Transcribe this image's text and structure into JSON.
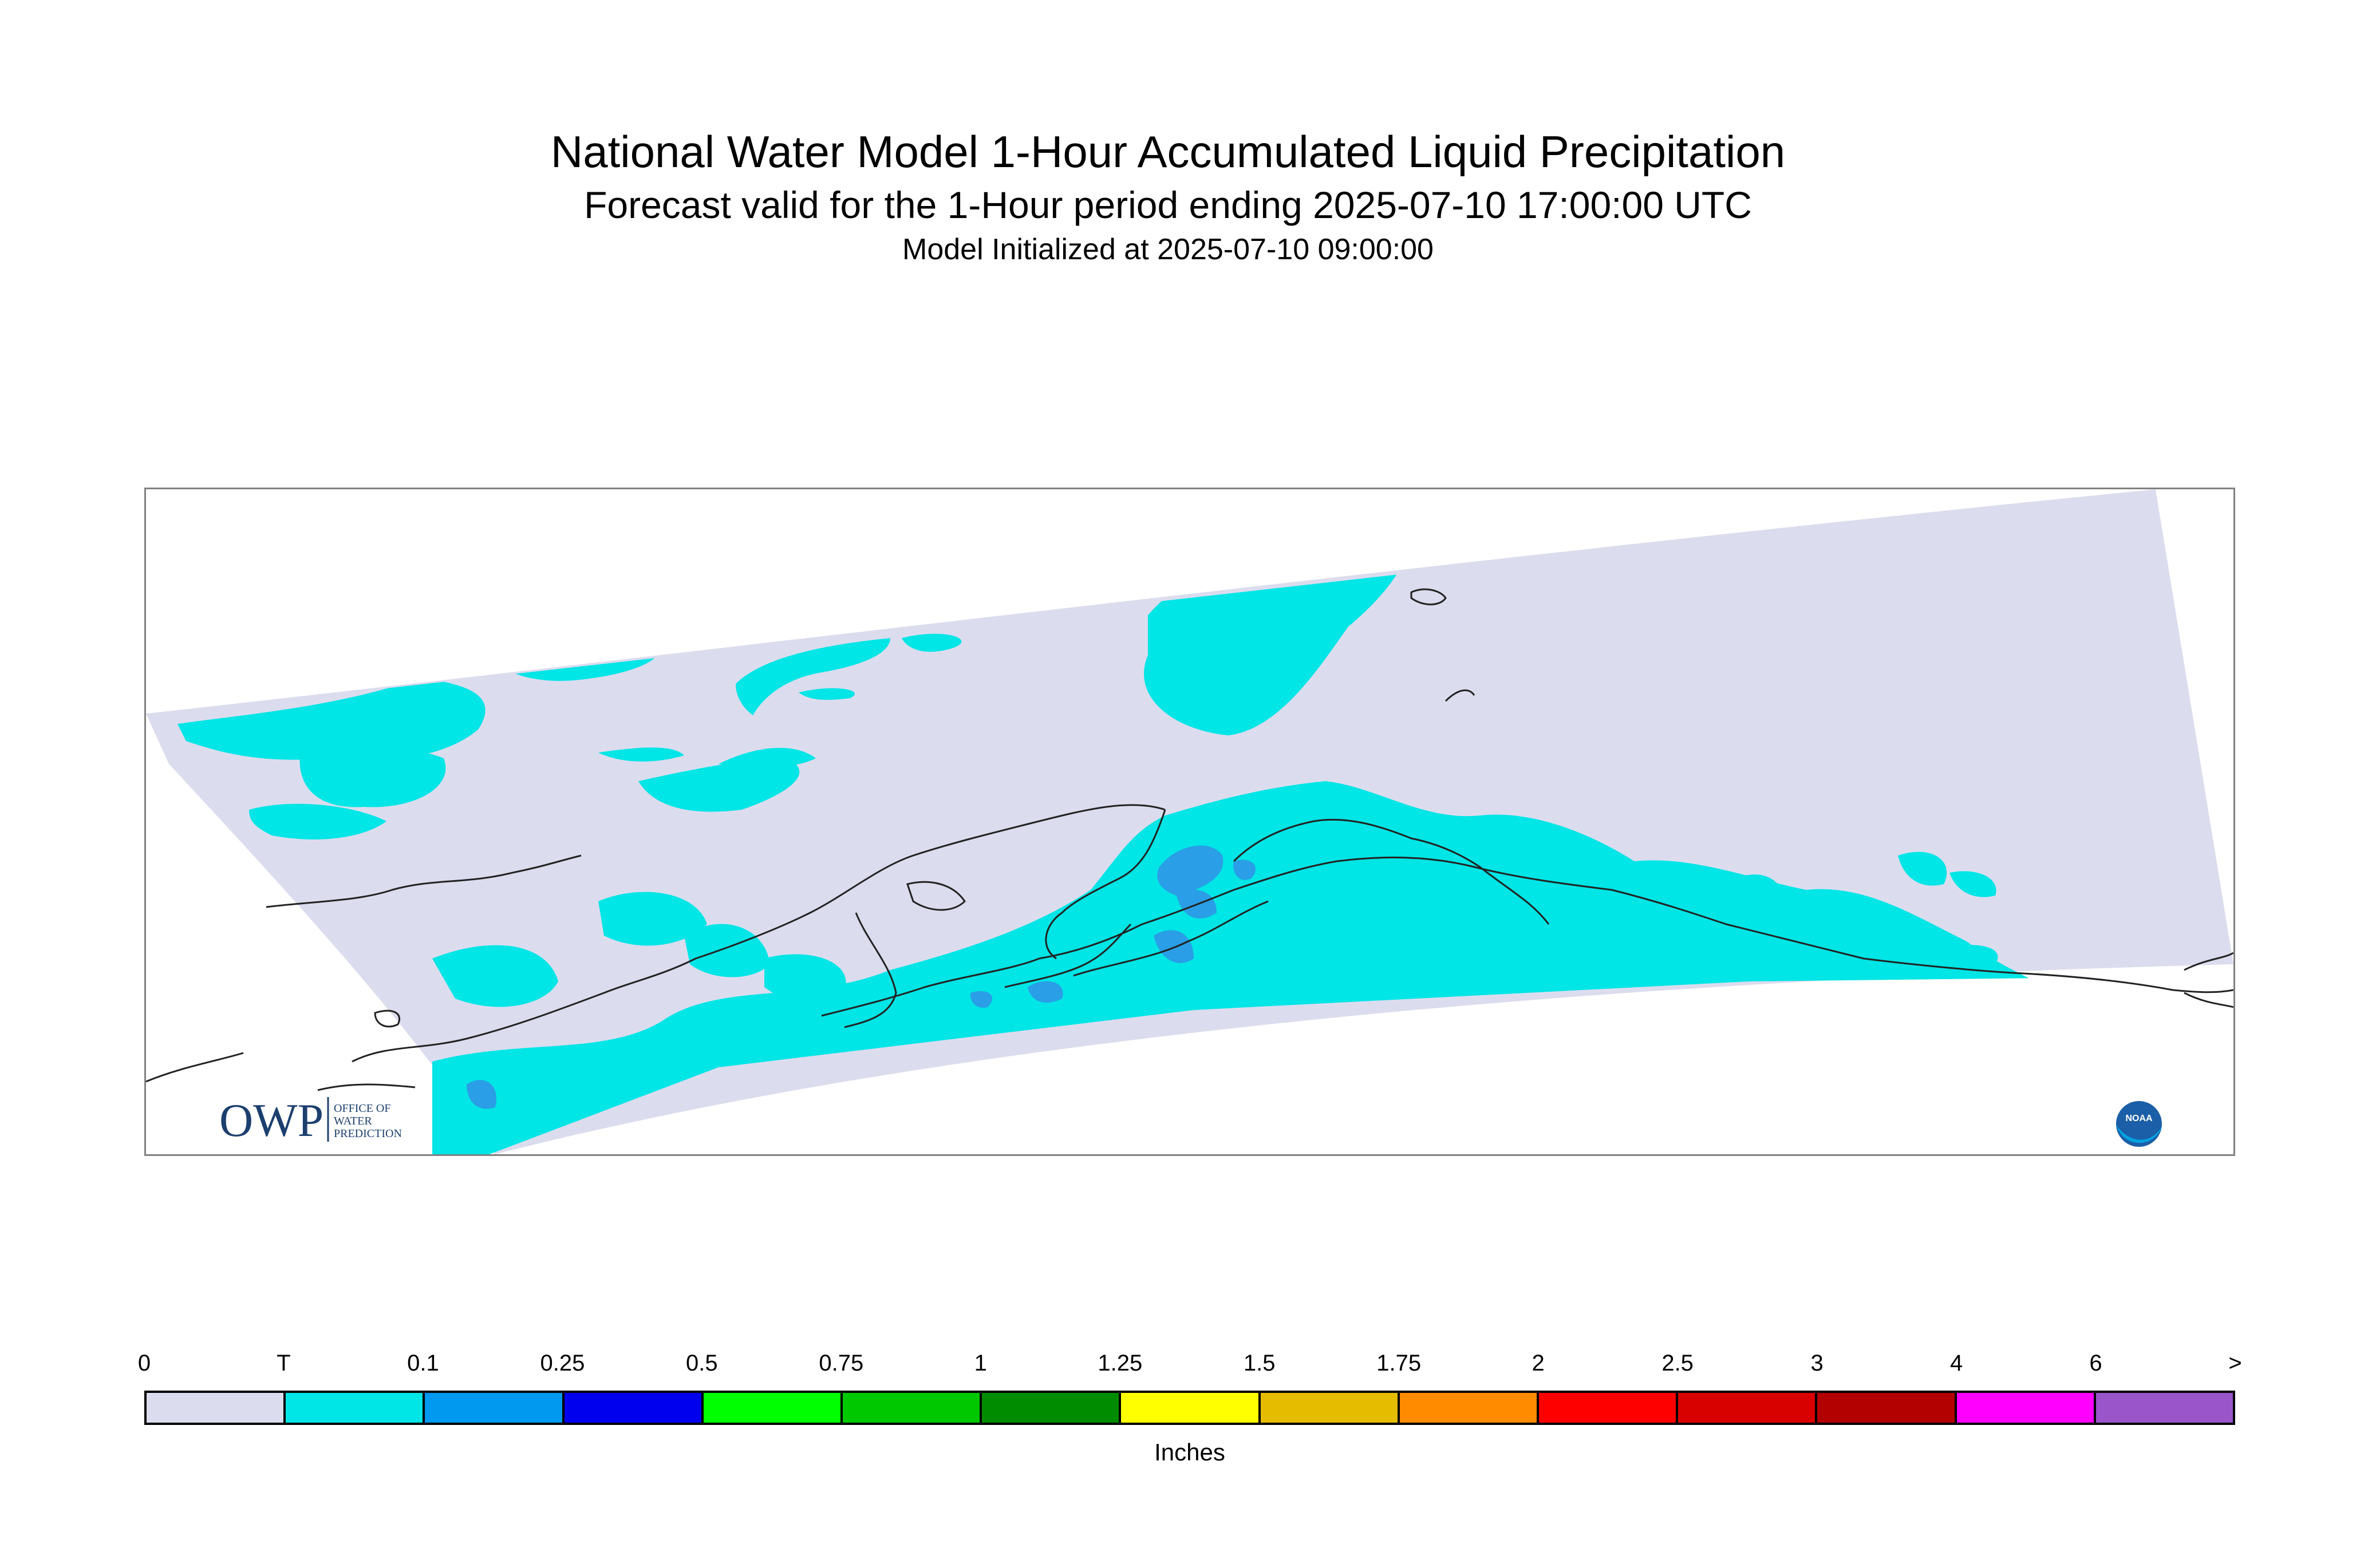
{
  "title": "National Water Model 1-Hour Accumulated Liquid Precipitation",
  "subtitle": "Forecast valid for the 1-Hour period ending 2025-07-10 17:00:00 UTC",
  "init_text": "Model Initialized at 2025-07-10 09:00:00",
  "legend": {
    "labels": [
      "0",
      "T",
      "0.1",
      "0.25",
      "0.5",
      "0.75",
      "1",
      "1.25",
      "1.5",
      "1.75",
      "2",
      "2.5",
      "3",
      "4",
      "6",
      ">"
    ],
    "colors": [
      "#dcdcef",
      "#00e5e5",
      "#0099f0",
      "#0000ee",
      "#00ff00",
      "#00c800",
      "#008c00",
      "#ffff00",
      "#e6bc00",
      "#ff8c00",
      "#ff0000",
      "#d90000",
      "#b30000",
      "#ff00ff",
      "#9955c9"
    ],
    "units": "Inches"
  },
  "colors": {
    "domain": "#dcdcef",
    "trace": "#00e5e5",
    "light": "#2a9ee6",
    "moderate": "#1010d0",
    "coast": "#222222"
  },
  "logos": {
    "owp_letters": "OWP",
    "owp_text_1": "OFFICE OF",
    "owp_text_2": "WATER",
    "owp_text_3": "PREDICTION",
    "noaa_text": "NOAA"
  },
  "icons": {
    "owp_logo": "owp-logo",
    "noaa_logo": "noaa-logo"
  }
}
